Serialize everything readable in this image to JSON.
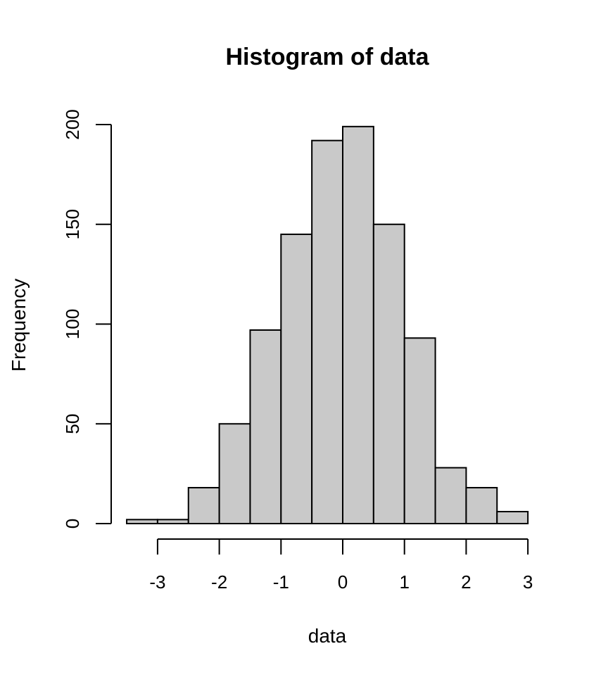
{
  "chart_data": {
    "type": "bar",
    "title": "Histogram of data",
    "xlabel": "data",
    "ylabel": "Frequency",
    "bin_edges": [
      -3.5,
      -3,
      -2.5,
      -2,
      -1.5,
      -1,
      -0.5,
      0,
      0.5,
      1,
      1.5,
      2,
      2.5,
      3
    ],
    "values": [
      2,
      2,
      18,
      50,
      97,
      145,
      192,
      199,
      150,
      93,
      28,
      18,
      6
    ],
    "xlim": [
      -3.5,
      3
    ],
    "ylim": [
      0,
      200
    ],
    "x_ticks": [
      -3,
      -2,
      -1,
      0,
      1,
      2,
      3
    ],
    "x_tick_labels": [
      "-3",
      "-2",
      "-1",
      "0",
      "1",
      "2",
      "3"
    ],
    "y_ticks": [
      0,
      50,
      100,
      150,
      200
    ],
    "y_tick_labels": [
      "0",
      "50",
      "100",
      "150",
      "200"
    ],
    "bar_color": "#c9c9c9",
    "edge_color": "#000000",
    "grid": false
  }
}
